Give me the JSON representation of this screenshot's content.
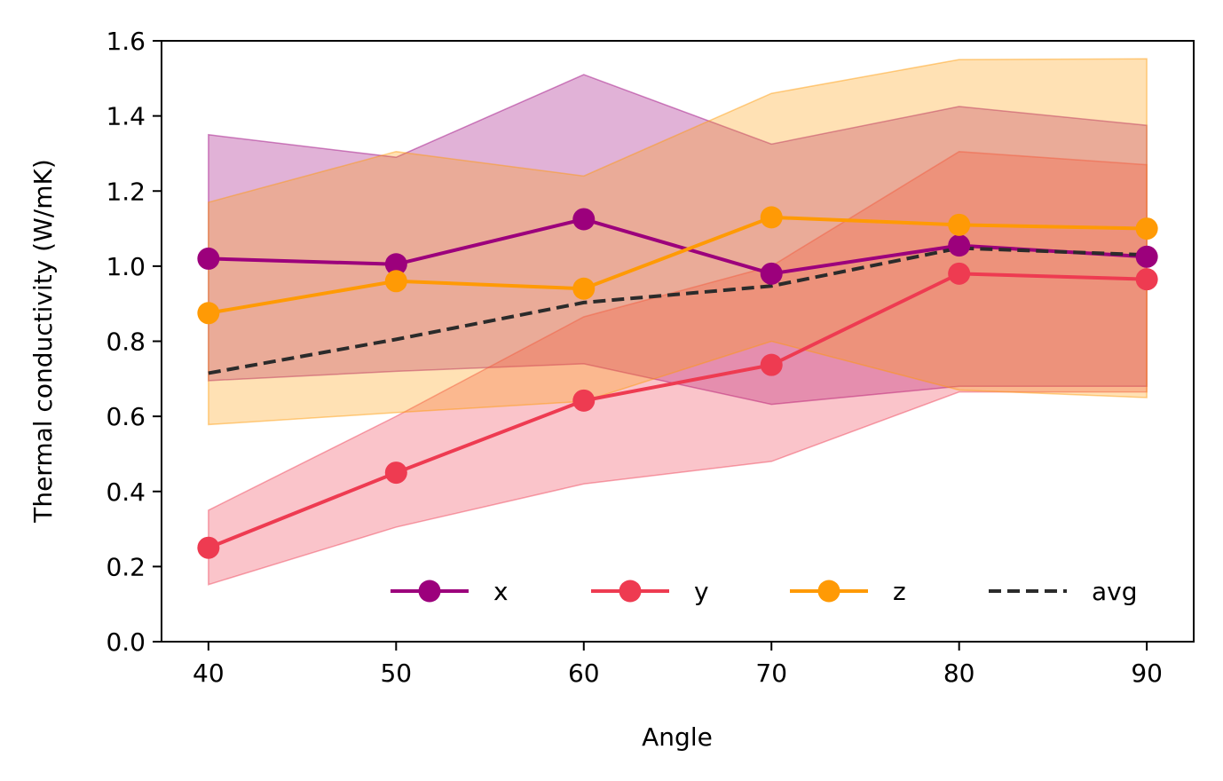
{
  "chart_data": {
    "type": "line",
    "title": "",
    "xlabel": "Angle",
    "ylabel": "Thermal conductivity (W/mK)",
    "x": [
      40,
      50,
      60,
      70,
      80,
      90
    ],
    "x_ticks": [
      "40",
      "50",
      "60",
      "70",
      "80",
      "90"
    ],
    "y_ticks": [
      "0.0",
      "0.2",
      "0.4",
      "0.6",
      "0.8",
      "1.0",
      "1.2",
      "1.4",
      "1.6"
    ],
    "xlim": [
      37.5,
      92.5
    ],
    "ylim": [
      0,
      1.6
    ],
    "grid": false,
    "legend_position": "lower-right",
    "series": [
      {
        "name": "x",
        "color": "#9c007c",
        "marker": "circle",
        "linestyle": "solid",
        "values": [
          1.02,
          1.005,
          1.125,
          0.98,
          1.055,
          1.025
        ],
        "band_upper": [
          1.35,
          1.29,
          1.51,
          1.325,
          1.425,
          1.375
        ],
        "band_lower": [
          0.695,
          0.72,
          0.74,
          0.632,
          0.68,
          0.68
        ]
      },
      {
        "name": "y",
        "color": "#ee3b51",
        "marker": "circle",
        "linestyle": "solid",
        "values": [
          0.25,
          0.45,
          0.642,
          0.737,
          0.98,
          0.965
        ],
        "band_upper": [
          0.35,
          0.6,
          0.865,
          1.0,
          1.305,
          1.27
        ],
        "band_lower": [
          0.152,
          0.305,
          0.42,
          0.48,
          0.665,
          0.665
        ]
      },
      {
        "name": "z",
        "color": "#ff9a05",
        "marker": "circle",
        "linestyle": "solid",
        "values": [
          0.875,
          0.96,
          0.94,
          1.13,
          1.11,
          1.1
        ],
        "band_upper": [
          1.17,
          1.305,
          1.24,
          1.46,
          1.55,
          1.552
        ],
        "band_lower": [
          0.578,
          0.61,
          0.64,
          0.8,
          0.67,
          0.65
        ]
      },
      {
        "name": "avg",
        "color": "#2b2b2b",
        "marker": "none",
        "linestyle": "dashed",
        "values": [
          0.715,
          0.805,
          0.903,
          0.947,
          1.048,
          1.03
        ]
      }
    ]
  }
}
